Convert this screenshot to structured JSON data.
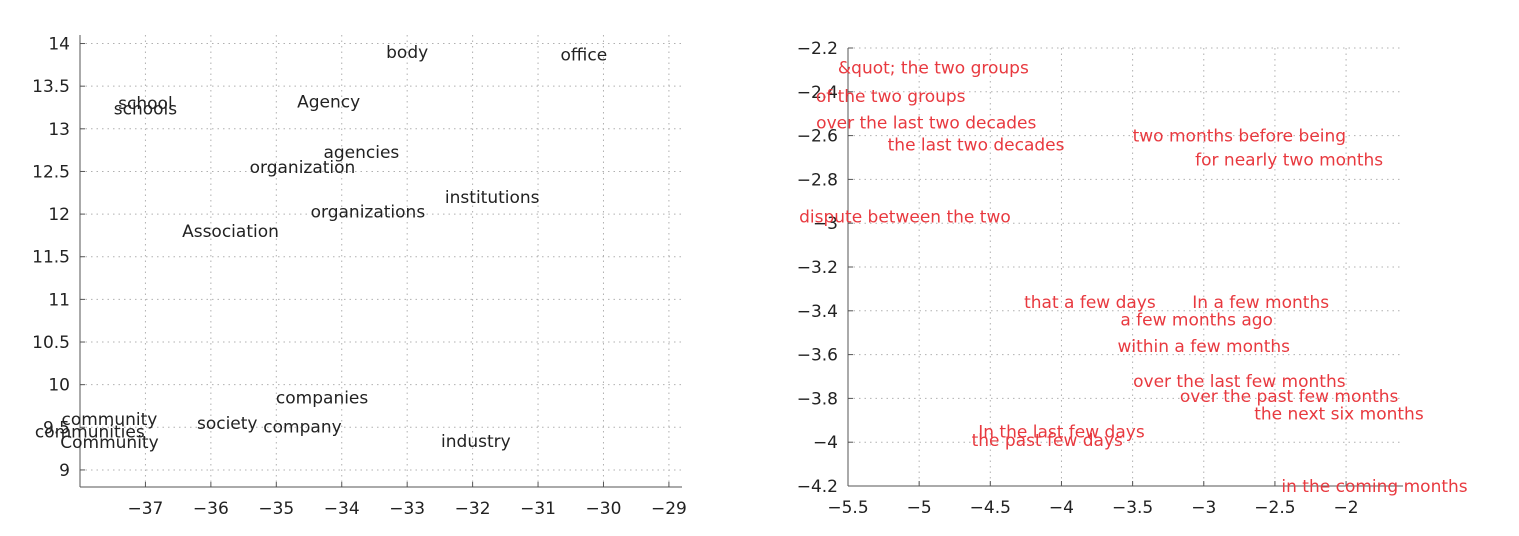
{
  "chart_data": [
    {
      "type": "scatter",
      "xlim": [
        -38,
        -28.8
      ],
      "ylim": [
        8.8,
        14.1
      ],
      "xticks": [
        -37,
        -36,
        -35,
        -34,
        -33,
        -32,
        -31,
        -30,
        -29
      ],
      "yticks": [
        9,
        9.5,
        10,
        10.5,
        11,
        11.5,
        12,
        12.5,
        13,
        13.5,
        14
      ],
      "xtick_labels": [
        "−37",
        "−36",
        "−35",
        "−34",
        "−33",
        "−32",
        "−31",
        "−30",
        "−29"
      ],
      "ytick_labels": [
        "9",
        "9.5",
        "10",
        "10.5",
        "11",
        "11.5",
        "12",
        "12.5",
        "13",
        "13.5",
        "14"
      ],
      "grid": true,
      "text_color": "#222222",
      "points": [
        {
          "label": "body",
          "x": -33.0,
          "y": 13.9
        },
        {
          "label": "office",
          "x": -30.3,
          "y": 13.87
        },
        {
          "label": "school",
          "x": -37.0,
          "y": 13.3
        },
        {
          "label": "schools",
          "x": -37.0,
          "y": 13.24
        },
        {
          "label": "Agency",
          "x": -34.2,
          "y": 13.32
        },
        {
          "label": "agencies",
          "x": -33.7,
          "y": 12.73
        },
        {
          "label": "organization",
          "x": -34.6,
          "y": 12.55
        },
        {
          "label": "institutions",
          "x": -31.7,
          "y": 12.2
        },
        {
          "label": "organizations",
          "x": -33.6,
          "y": 12.03
        },
        {
          "label": "Association",
          "x": -35.7,
          "y": 11.8
        },
        {
          "label": "companies",
          "x": -34.3,
          "y": 9.85
        },
        {
          "label": "community",
          "x": -37.55,
          "y": 9.6
        },
        {
          "label": "society",
          "x": -35.75,
          "y": 9.55
        },
        {
          "label": "company",
          "x": -34.6,
          "y": 9.51
        },
        {
          "label": "communities",
          "x": -37.85,
          "y": 9.45
        },
        {
          "label": "Community",
          "x": -37.55,
          "y": 9.33
        },
        {
          "label": "industry",
          "x": -31.95,
          "y": 9.34
        }
      ]
    },
    {
      "type": "scatter",
      "xlim": [
        -5.5,
        -1.6
      ],
      "ylim": [
        -4.2,
        -2.2
      ],
      "xticks": [
        -5.5,
        -5,
        -4.5,
        -4,
        -3.5,
        -3,
        -2.5,
        -2
      ],
      "yticks": [
        -2.2,
        -2.4,
        -2.6,
        -2.8,
        -3,
        -3.2,
        -3.4,
        -3.6,
        -3.8,
        -4,
        -4.2
      ],
      "xtick_labels": [
        "−5.5",
        "−5",
        "−4.5",
        "−4",
        "−3.5",
        "−3",
        "−2.5",
        "−2"
      ],
      "ytick_labels": [
        "−2.2",
        "−2.4",
        "−2.6",
        "−2.8",
        "−3",
        "−3.2",
        "−3.4",
        "−3.6",
        "−3.8",
        "−4",
        "−4.2"
      ],
      "grid": true,
      "text_color": "#e8393f",
      "points": [
        {
          "label": "&quot; the two groups",
          "x": -4.9,
          "y": -2.29
        },
        {
          "label": "of the two groups",
          "x": -5.2,
          "y": -2.42
        },
        {
          "label": "over the last two decades",
          "x": -4.95,
          "y": -2.54
        },
        {
          "label": "two months before being",
          "x": -2.75,
          "y": -2.6
        },
        {
          "label": "the last two decades",
          "x": -4.6,
          "y": -2.64
        },
        {
          "label": "for nearly two months",
          "x": -2.4,
          "y": -2.71
        },
        {
          "label": "dispute between the two",
          "x": -5.1,
          "y": -2.97
        },
        {
          "label": "that a few days",
          "x": -3.8,
          "y": -3.36
        },
        {
          "label": "In a few months",
          "x": -2.6,
          "y": -3.36
        },
        {
          "label": "a few months ago",
          "x": -3.05,
          "y": -3.44
        },
        {
          "label": "within a few months",
          "x": -3.0,
          "y": -3.56
        },
        {
          "label": "over the last few months",
          "x": -2.75,
          "y": -3.72
        },
        {
          "label": "over the past few months",
          "x": -2.4,
          "y": -3.79
        },
        {
          "label": "the next six months",
          "x": -2.05,
          "y": -3.87
        },
        {
          "label": "In the last few days",
          "x": -4.0,
          "y": -3.95
        },
        {
          "label": "the past few days",
          "x": -4.1,
          "y": -3.99
        },
        {
          "label": "in the coming months",
          "x": -1.8,
          "y": -4.2
        }
      ]
    }
  ]
}
